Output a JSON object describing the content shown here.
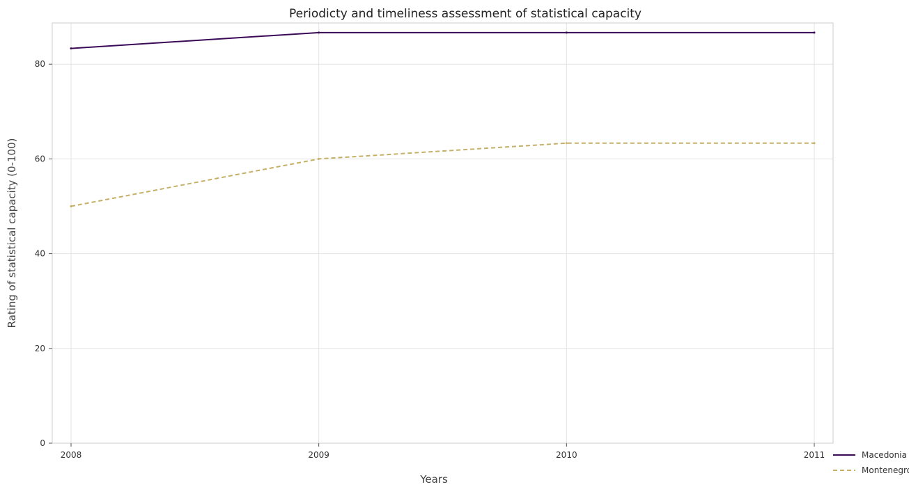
{
  "chart_data": {
    "type": "line",
    "title": "Periodicty and timeliness assessment of statistical capacity",
    "xlabel": "Years",
    "ylabel": "Rating of statistical capacity (0-100)",
    "x": [
      "2008",
      "2009",
      "2010",
      "2011"
    ],
    "ylim": [
      0,
      88.7
    ],
    "yticks": [
      0,
      20,
      40,
      60,
      80
    ],
    "grid": true,
    "legend_position": "bottom-right",
    "series": [
      {
        "name": "Macedonia",
        "color": "#3b0a57",
        "dash": "solid",
        "values": [
          83.33,
          86.67,
          86.67,
          86.67
        ]
      },
      {
        "name": "Montenegro",
        "color": "#c4b066",
        "dash": "dashed",
        "values": [
          50.0,
          60.0,
          63.33,
          63.33
        ]
      }
    ]
  }
}
